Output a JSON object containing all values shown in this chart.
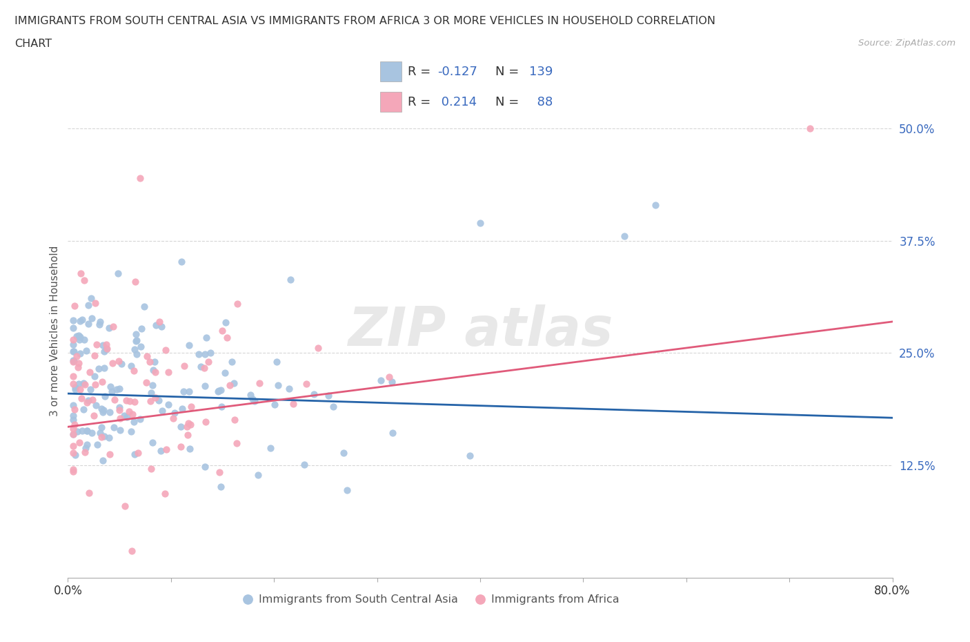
{
  "title_line1": "IMMIGRANTS FROM SOUTH CENTRAL ASIA VS IMMIGRANTS FROM AFRICA 3 OR MORE VEHICLES IN HOUSEHOLD CORRELATION",
  "title_line2": "CHART",
  "source": "Source: ZipAtlas.com",
  "ylabel": "3 or more Vehicles in Household",
  "blue_label": "Immigrants from South Central Asia",
  "pink_label": "Immigrants from Africa",
  "blue_R": -0.127,
  "blue_N": 139,
  "pink_R": 0.214,
  "pink_N": 88,
  "xlim": [
    0.0,
    0.8
  ],
  "ylim": [
    0.0,
    0.55
  ],
  "yticks": [
    0.125,
    0.25,
    0.375,
    0.5
  ],
  "yticklabels": [
    "12.5%",
    "25.0%",
    "37.5%",
    "50.0%"
  ],
  "blue_color": "#a8c4e0",
  "pink_color": "#f4a7b9",
  "blue_line_color": "#2563a8",
  "pink_line_color": "#e05a7a",
  "legend_text_color": "#3a6abf",
  "background_color": "#ffffff",
  "blue_trend_start": 0.205,
  "blue_trend_end": 0.178,
  "pink_trend_start": 0.168,
  "pink_trend_end": 0.285
}
